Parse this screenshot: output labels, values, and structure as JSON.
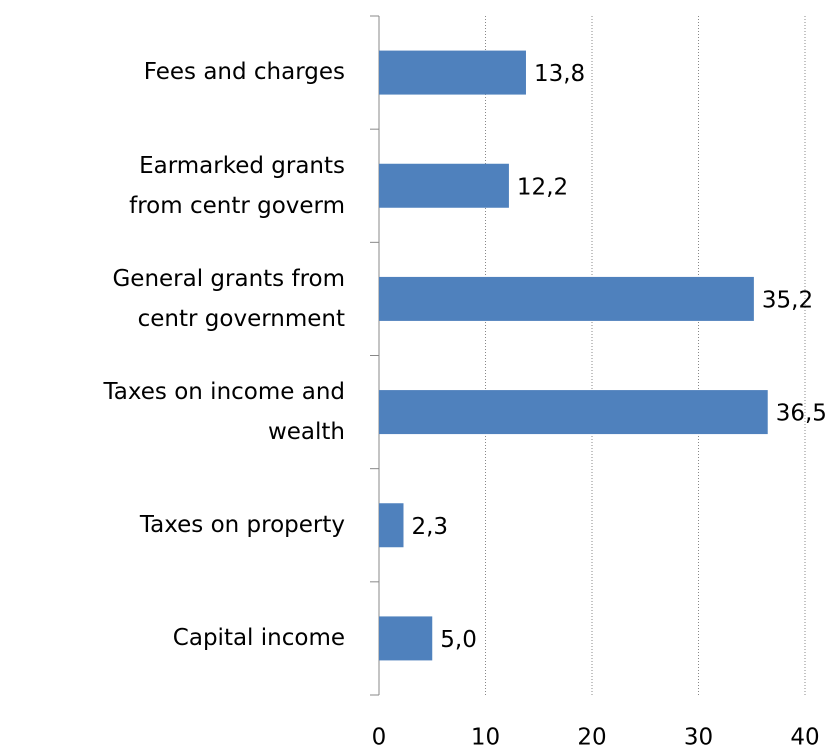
{
  "chart_data": {
    "type": "barh",
    "categories": [
      "Fees and charges",
      "Earmarked grants\nfrom centr goverm",
      "General grants from\ncentr government",
      "Taxes on income and\nwealth",
      "Taxes on property",
      "Capital income"
    ],
    "values": [
      13.8,
      12.2,
      35.2,
      36.5,
      2.3,
      5.0
    ],
    "value_labels": [
      "13,8",
      "12,2",
      "35,2",
      "36,5",
      "2,3",
      "5,0"
    ],
    "color": "#4f81bd",
    "xlim": [
      0,
      40
    ],
    "xticks": [
      0,
      10,
      20,
      30,
      40
    ],
    "grid": true
  }
}
